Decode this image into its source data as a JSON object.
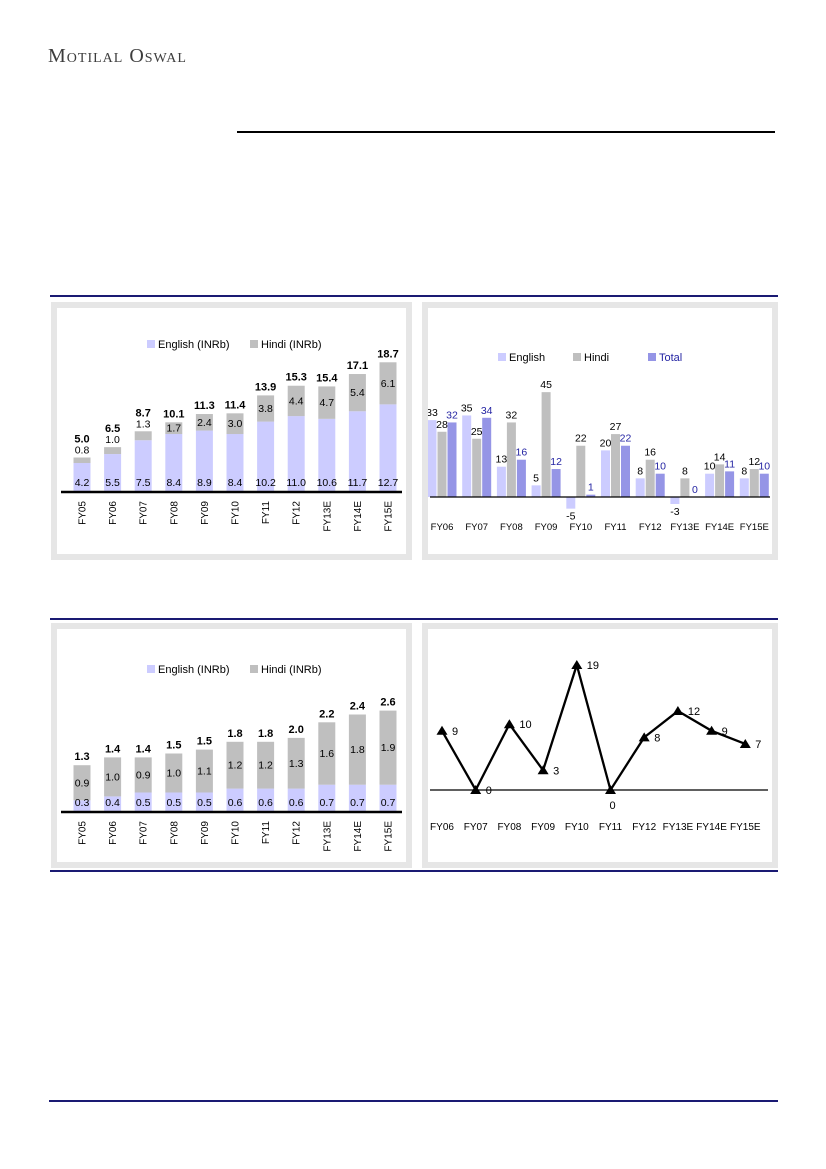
{
  "page": {
    "brand": "Motilal Oswal",
    "background": "#FFFFFF"
  },
  "colors": {
    "english": "#CCCCFF",
    "hindi": "#BFBFBF",
    "total": "#9595E6",
    "total_label": "#2424A3",
    "navy_rule": "#1A1A73",
    "panel_border": "#E6E6E6",
    "axis": "#000000"
  },
  "chart_data": [
    {
      "name": "stacked-bar-chart-top-left",
      "type": "bar",
      "stacked": true,
      "legend_position": "top",
      "grid": false,
      "ylim": [
        0,
        20
      ],
      "categories": [
        "FY05",
        "FY06",
        "FY07",
        "FY08",
        "FY09",
        "FY10",
        "FY11",
        "FY12",
        "FY13E",
        "FY14E",
        "FY15E"
      ],
      "series": [
        {
          "name": "English (INRb)",
          "color": "english",
          "values": [
            4.2,
            5.5,
            7.5,
            8.4,
            8.9,
            8.4,
            10.2,
            11.0,
            10.6,
            11.7,
            12.7
          ]
        },
        {
          "name": "Hindi (INRb)",
          "color": "hindi",
          "values": [
            0.8,
            1.0,
            1.3,
            1.7,
            2.4,
            3.0,
            3.8,
            4.4,
            4.7,
            5.4,
            6.1
          ]
        }
      ],
      "totals": [
        5.0,
        6.5,
        8.7,
        10.1,
        11.3,
        11.4,
        13.9,
        15.3,
        15.4,
        17.1,
        18.7
      ],
      "value_format": "1dp"
    },
    {
      "name": "grouped-bar-chart-top-right",
      "type": "bar",
      "stacked": false,
      "legend_position": "top",
      "grid": false,
      "ylim": [
        -10,
        50
      ],
      "categories": [
        "FY06",
        "FY07",
        "FY08",
        "FY09",
        "FY10",
        "FY11",
        "FY12",
        "FY13E",
        "FY14E",
        "FY15E"
      ],
      "series": [
        {
          "name": "English",
          "color": "english",
          "values": [
            33,
            35,
            13,
            5,
            -5,
            20,
            8,
            -3,
            10,
            8
          ]
        },
        {
          "name": "Hindi",
          "color": "hindi",
          "values": [
            28,
            25,
            32,
            45,
            22,
            27,
            16,
            8,
            14,
            12
          ]
        },
        {
          "name": "Total",
          "color": "total",
          "label_color": "total_label",
          "values": [
            32,
            34,
            16,
            12,
            1,
            22,
            10,
            0,
            11,
            10
          ]
        }
      ],
      "value_format": "int"
    },
    {
      "name": "stacked-bar-chart-bottom-left",
      "type": "bar",
      "stacked": true,
      "legend_position": "top",
      "grid": false,
      "ylim": [
        0,
        2.8
      ],
      "categories": [
        "FY05",
        "FY06",
        "FY07",
        "FY08",
        "FY09",
        "FY10",
        "FY11",
        "FY12",
        "FY13E",
        "FY14E",
        "FY15E"
      ],
      "series": [
        {
          "name": "English (INRb)",
          "color": "english",
          "values": [
            0.3,
            0.4,
            0.5,
            0.5,
            0.5,
            0.6,
            0.6,
            0.6,
            0.7,
            0.7,
            0.7
          ]
        },
        {
          "name": "Hindi (INRb)",
          "color": "hindi",
          "values": [
            0.9,
            1.0,
            0.9,
            1.0,
            1.1,
            1.2,
            1.2,
            1.3,
            1.6,
            1.8,
            1.9
          ]
        }
      ],
      "totals": [
        1.3,
        1.4,
        1.4,
        1.5,
        1.5,
        1.8,
        1.8,
        2.0,
        2.2,
        2.4,
        2.6
      ],
      "value_format": "1dp"
    },
    {
      "name": "line-chart-bottom-right",
      "type": "line",
      "grid": false,
      "ylim": [
        -2,
        22
      ],
      "categories": [
        "FY06",
        "FY07",
        "FY08",
        "FY09",
        "FY10",
        "FY11",
        "FY12",
        "FY13E",
        "FY14E",
        "FY15E"
      ],
      "values": [
        9,
        0,
        10,
        3,
        19,
        0,
        8,
        12,
        9,
        7
      ],
      "value_format": "int"
    }
  ]
}
